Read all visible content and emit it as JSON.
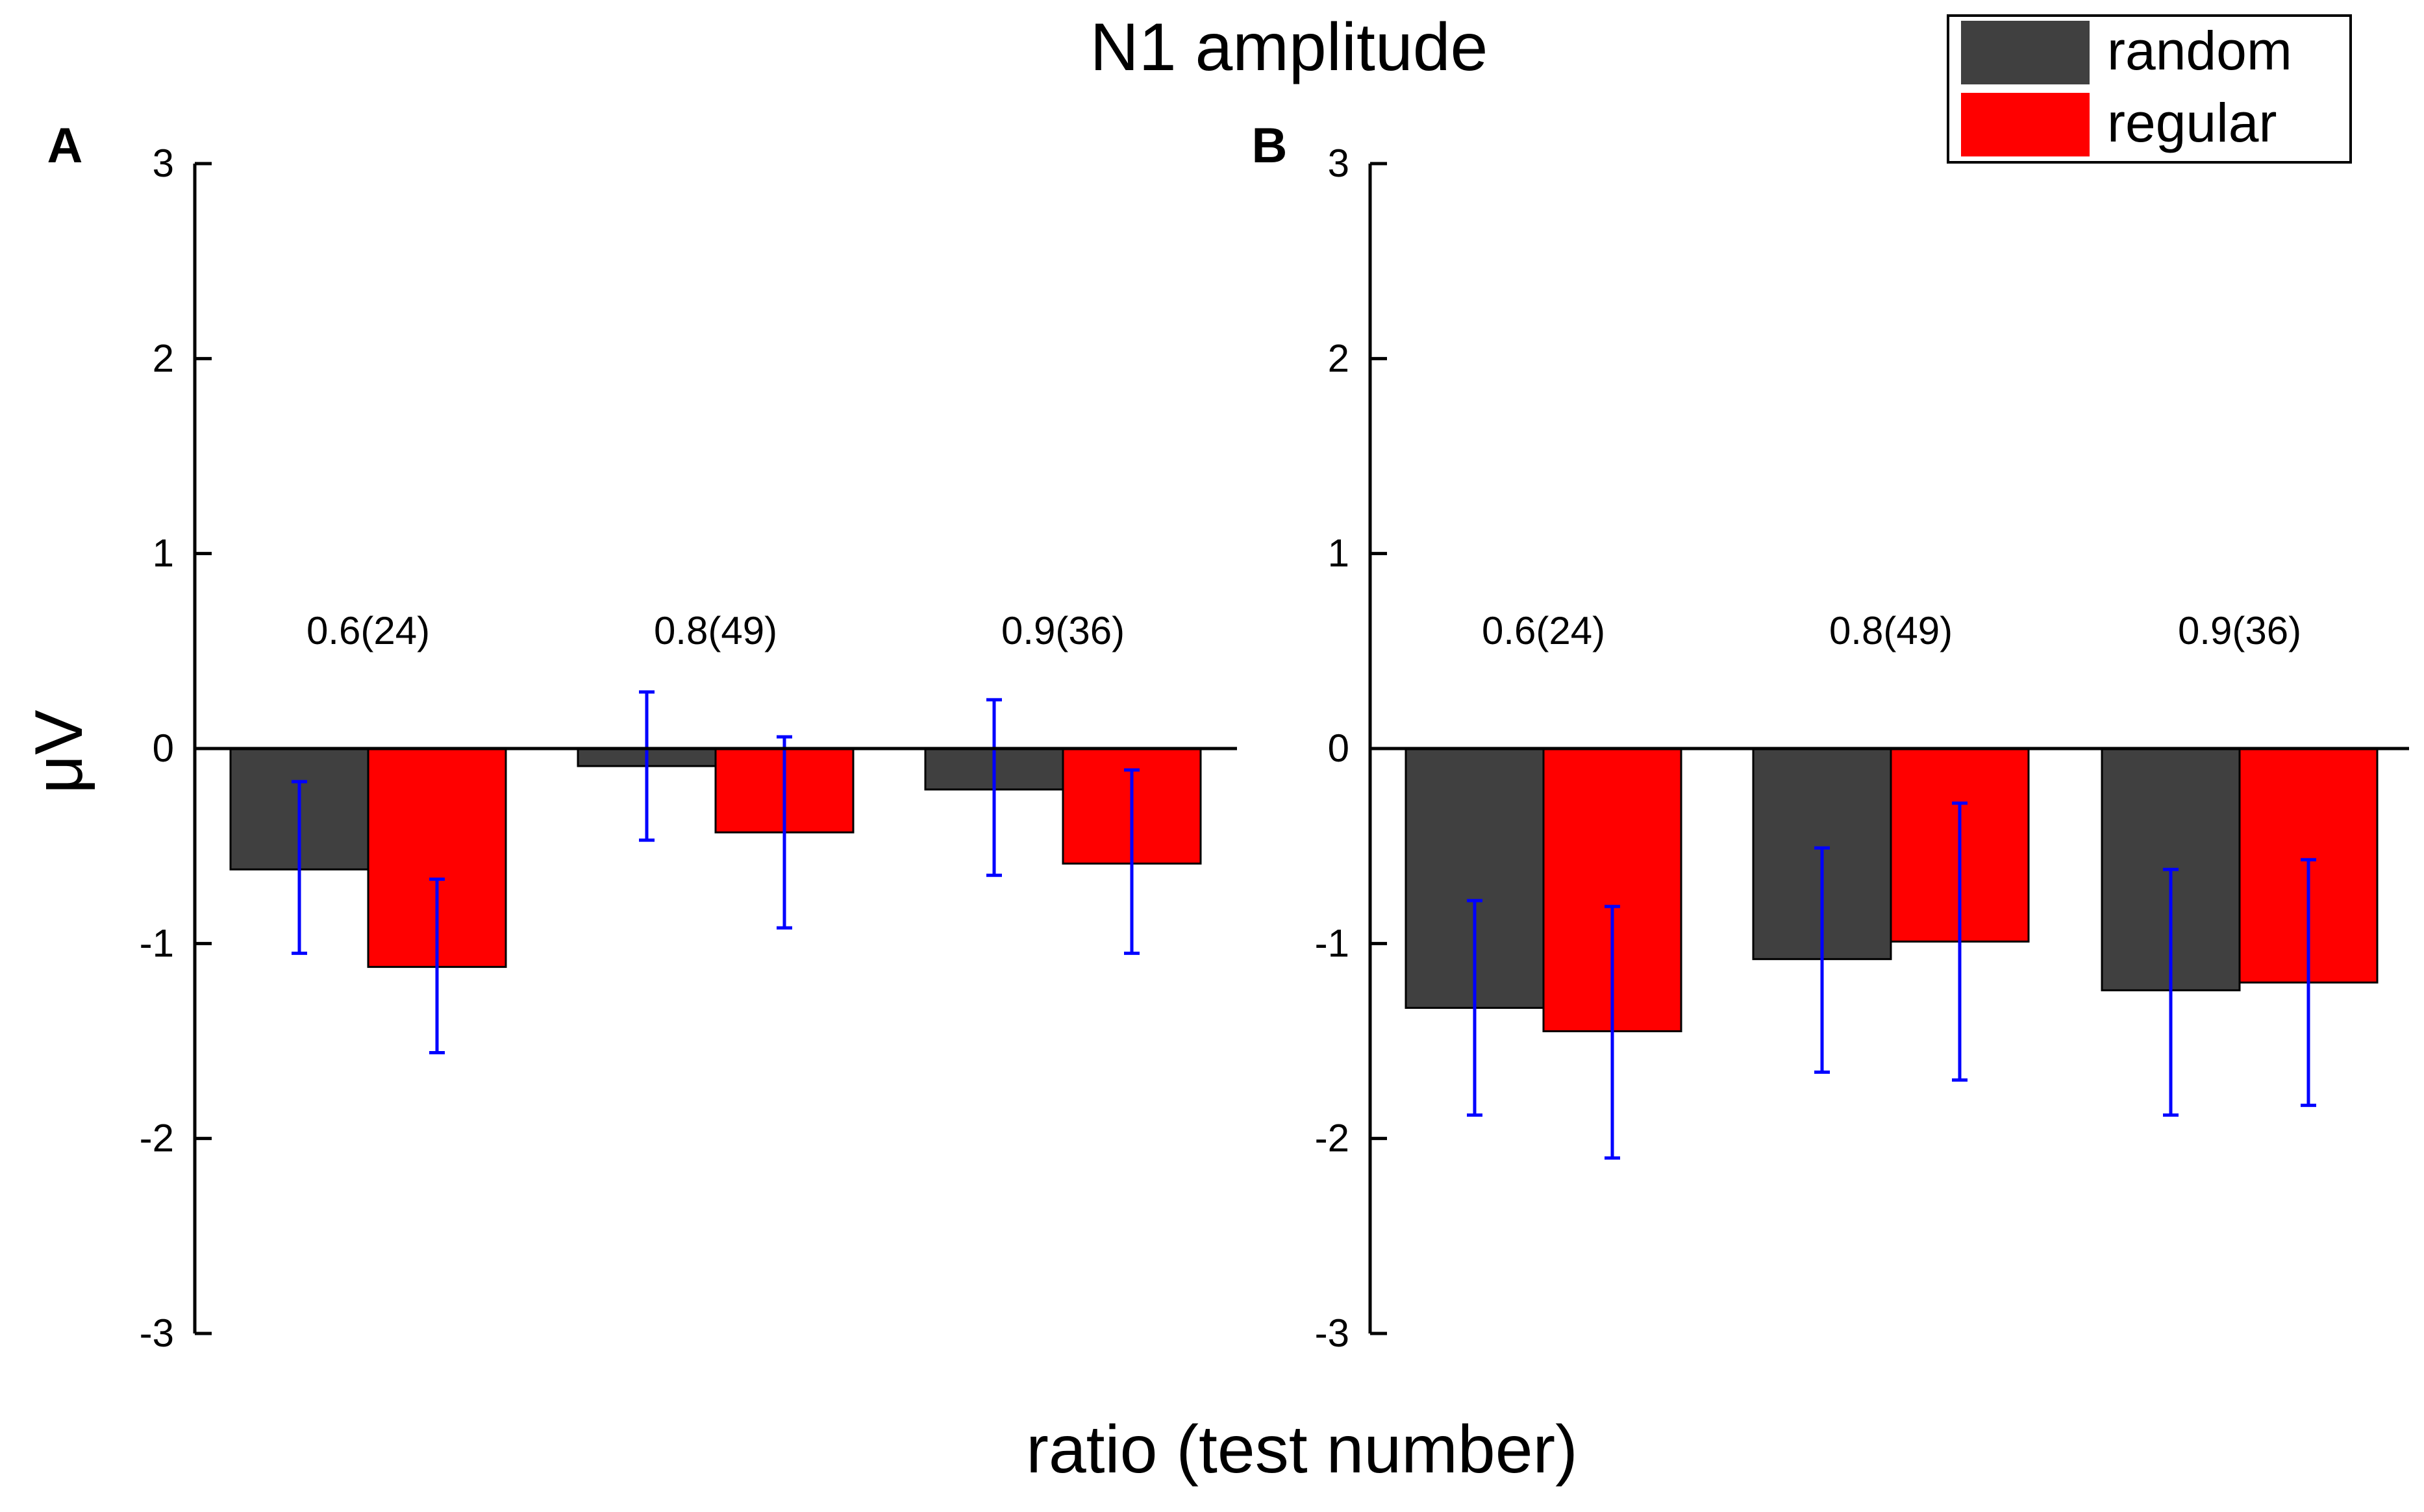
{
  "figure": {
    "title": "N1 amplitude",
    "xlabel": "ratio (test number)",
    "ylabel": "μV"
  },
  "legend": {
    "entries": [
      {
        "name": "random",
        "color": "#404040"
      },
      {
        "name": "regular",
        "color": "#ff0000"
      }
    ]
  },
  "colors": {
    "random": "#404040",
    "regular": "#ff0000",
    "error_bar": "#0000ff",
    "axis": "#000000"
  },
  "chart_data": [
    {
      "type": "bar",
      "panel_label": "A",
      "title": "N1 amplitude",
      "xlabel": "ratio (test number)",
      "ylabel": "μV",
      "ylim": [
        -3,
        3
      ],
      "yticks": [
        -3,
        -2,
        -1,
        0,
        1,
        2,
        3
      ],
      "categories": [
        "0.6(24)",
        "0.8(49)",
        "0.9(36)"
      ],
      "series": [
        {
          "name": "random",
          "values": [
            -0.62,
            -0.09,
            -0.21
          ],
          "error_low": [
            -1.05,
            -0.47,
            -0.65
          ],
          "error_high": [
            -0.17,
            0.29,
            0.25
          ]
        },
        {
          "name": "regular",
          "values": [
            -1.12,
            -0.43,
            -0.59
          ],
          "error_low": [
            -1.56,
            -0.92,
            -1.05
          ],
          "error_high": [
            -0.67,
            0.06,
            -0.11
          ]
        }
      ]
    },
    {
      "type": "bar",
      "panel_label": "B",
      "title": "N1 amplitude",
      "xlabel": "ratio (test number)",
      "ylabel": "μV",
      "ylim": [
        -3,
        3
      ],
      "yticks": [
        -3,
        -2,
        -1,
        0,
        1,
        2,
        3
      ],
      "categories": [
        "0.6(24)",
        "0.8(49)",
        "0.9(36)"
      ],
      "series": [
        {
          "name": "random",
          "values": [
            -1.33,
            -1.08,
            -1.24
          ],
          "error_low": [
            -1.88,
            -1.66,
            -1.88
          ],
          "error_high": [
            -0.78,
            -0.51,
            -0.62
          ]
        },
        {
          "name": "regular",
          "values": [
            -1.45,
            -0.99,
            -1.2
          ],
          "error_low": [
            -2.1,
            -1.7,
            -1.83
          ],
          "error_high": [
            -0.81,
            -0.28,
            -0.57
          ]
        }
      ]
    }
  ]
}
